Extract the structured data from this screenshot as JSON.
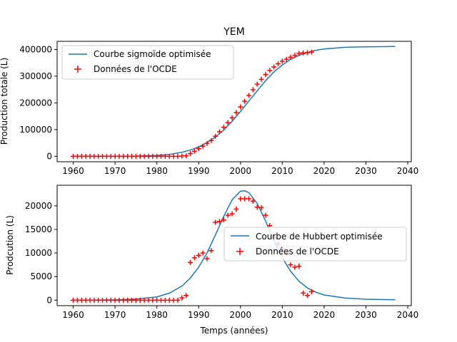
{
  "chart_data": [
    {
      "type": "line",
      "title": "YEM",
      "xlabel": "",
      "ylabel": "Production totale (L)",
      "xlim": [
        1956.15,
        2040.85
      ],
      "ylim": [
        -20500,
        430500
      ],
      "xticks": [
        1960,
        1970,
        1980,
        1990,
        2000,
        2010,
        2020,
        2030,
        2040
      ],
      "yticks": [
        0,
        100000,
        200000,
        300000,
        400000
      ],
      "legend_placement": "upper left",
      "series": [
        {
          "name": "Courbe sigmoïde optimisée",
          "kind": "line",
          "color": "#1f77b4",
          "x": [
            1960,
            1965,
            1970,
            1975,
            1980,
            1983,
            1986,
            1988,
            1990,
            1992,
            1994,
            1996,
            1998,
            2000,
            2002,
            2004,
            2006,
            2008,
            2010,
            2012,
            2014,
            2016,
            2018,
            2020,
            2025,
            2030,
            2037
          ],
          "y": [
            0,
            0,
            100,
            600,
            3000,
            7000,
            15000,
            23000,
            35000,
            51000,
            72000,
            98000,
            131000,
            168000,
            207000,
            245000,
            283000,
            316000,
            342000,
            363000,
            378000,
            389000,
            397000,
            402000,
            408000,
            410000,
            411000
          ]
        },
        {
          "name": "Données de l'OCDE",
          "kind": "scatter",
          "color": "#ff0000",
          "x": [
            1960,
            1961,
            1962,
            1963,
            1964,
            1965,
            1966,
            1967,
            1968,
            1969,
            1970,
            1971,
            1972,
            1973,
            1974,
            1975,
            1976,
            1977,
            1978,
            1979,
            1980,
            1981,
            1982,
            1983,
            1984,
            1985,
            1986,
            1987,
            1988,
            1989,
            1990,
            1991,
            1992,
            1993,
            1994,
            1995,
            1996,
            1997,
            1998,
            1999,
            2000,
            2001,
            2002,
            2003,
            2004,
            2005,
            2006,
            2007,
            2008,
            2009,
            2010,
            2011,
            2012,
            2013,
            2014,
            2015,
            2016,
            2017
          ],
          "y": [
            0,
            0,
            0,
            0,
            0,
            0,
            0,
            0,
            0,
            0,
            0,
            0,
            0,
            0,
            0,
            0,
            0,
            0,
            0,
            0,
            0,
            0,
            0,
            0,
            0,
            0,
            1000,
            2000,
            10000,
            19000,
            28500,
            37500,
            48000,
            58500,
            75000,
            91500,
            108500,
            126000,
            144000,
            163500,
            185000,
            206500,
            228000,
            249500,
            270000,
            288000,
            306000,
            321500,
            334500,
            346500,
            356000,
            363500,
            371000,
            378000,
            385000,
            387000,
            388000,
            390000
          ]
        }
      ]
    },
    {
      "type": "line",
      "title": "",
      "xlabel": "Temps (années)",
      "ylabel": "Prodcution (L)",
      "xlim": [
        1956.15,
        2040.85
      ],
      "ylim": [
        -1160,
        24360
      ],
      "xticks": [
        1960,
        1970,
        1980,
        1990,
        2000,
        2010,
        2020,
        2030,
        2040
      ],
      "yticks": [
        0,
        5000,
        10000,
        15000,
        20000
      ],
      "legend_placement": "center right",
      "series": [
        {
          "name": "Courbe de Hubbert optimisée",
          "kind": "line",
          "color": "#1f77b4",
          "x": [
            1960,
            1965,
            1970,
            1975,
            1980,
            1983,
            1986,
            1988,
            1990,
            1992,
            1994,
            1996,
            1998,
            2000,
            2001,
            2002,
            2004,
            2006,
            2008,
            2010,
            2012,
            2014,
            2016,
            2018,
            2020,
            2025,
            2030,
            2037
          ],
          "y": [
            0,
            20,
            70,
            250,
            700,
            1500,
            3000,
            4700,
            7000,
            10000,
            13800,
            17800,
            21300,
            23100,
            23200,
            22800,
            20500,
            16800,
            12700,
            9000,
            6100,
            4000,
            2600,
            1700,
            1100,
            450,
            200,
            80
          ]
        },
        {
          "name": "Données de l'OCDE",
          "kind": "scatter",
          "color": "#ff0000",
          "x": [
            1960,
            1961,
            1962,
            1963,
            1964,
            1965,
            1966,
            1967,
            1968,
            1969,
            1970,
            1971,
            1972,
            1973,
            1974,
            1975,
            1976,
            1977,
            1978,
            1979,
            1980,
            1981,
            1982,
            1983,
            1984,
            1985,
            1986,
            1987,
            1988,
            1989,
            1990,
            1991,
            1992,
            1993,
            1994,
            1995,
            1996,
            1997,
            1998,
            1999,
            2000,
            2001,
            2002,
            2003,
            2004,
            2005,
            2006,
            2007,
            2008,
            2009,
            2010,
            2011,
            2012,
            2013,
            2014,
            2015,
            2016,
            2017
          ],
          "y": [
            0,
            0,
            0,
            0,
            0,
            0,
            0,
            0,
            0,
            0,
            0,
            0,
            0,
            0,
            0,
            0,
            0,
            0,
            0,
            0,
            0,
            0,
            0,
            0,
            0,
            0,
            500,
            1000,
            8000,
            9000,
            9500,
            10000,
            8800,
            10500,
            16500,
            16700,
            17000,
            18000,
            18300,
            19300,
            21500,
            21500,
            21500,
            21000,
            19700,
            19600,
            18000,
            15800,
            13300,
            12000,
            10800,
            9800,
            7500,
            7000,
            7200,
            1500,
            1000,
            1800
          ]
        }
      ]
    }
  ]
}
